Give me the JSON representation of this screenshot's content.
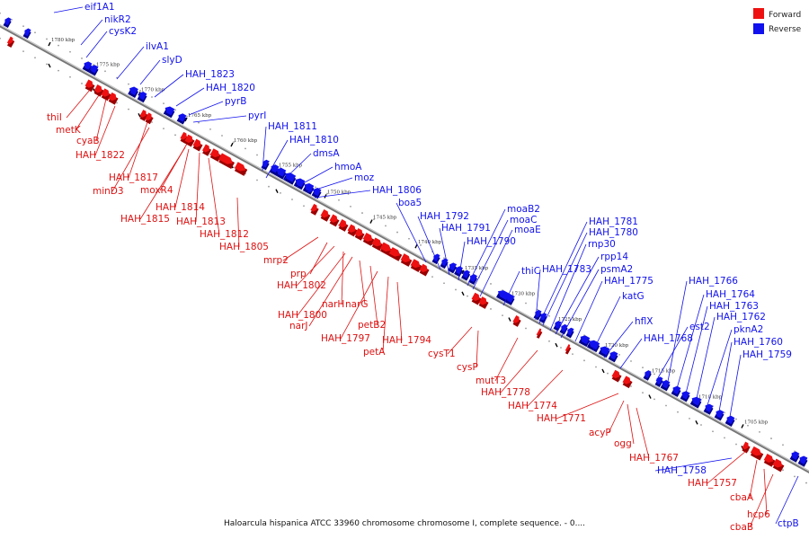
{
  "caption": "Haloarcula hispanica ATCC 33960 chromosome chromosome I, complete sequence. - 0....",
  "legend": [
    {
      "label": "Forward",
      "color": "#ee1111"
    },
    {
      "label": "Reverse",
      "color": "#1111ee"
    }
  ],
  "colors": {
    "forward": "#ee1111",
    "forward_dark": "#9a0000",
    "reverse": "#1111ee",
    "reverse_dark": "#00008a",
    "backbone": "#777777"
  },
  "kbp_ticks": [
    "1780 kbp",
    "1775 kbp",
    "1770 kbp",
    "1765 kbp",
    "1760 kbp",
    "1755 kbp",
    "1750 kbp",
    "1745 kbp",
    "1740 kbp",
    "1735 kbp",
    "1730 kbp",
    "1725 kbp",
    "1720 kbp",
    "1715 kbp",
    "1710 kbp",
    "1705 kbp"
  ],
  "reverse_labels": [
    "eif1A1",
    "nikR2",
    "cysK2",
    "ilvA1",
    "slyD",
    "HAH_1823",
    "HAH_1820",
    "pyrB",
    "pyrI",
    "HAH_1811",
    "HAH_1810",
    "dmsA",
    "hmoA",
    "moz",
    "HAH_1806",
    "boa5",
    "HAH_1792",
    "HAH_1791",
    "HAH_1790",
    "moaB2",
    "moaC",
    "moaE",
    "thiC",
    "HAH_1783",
    "HAH_1781",
    "HAH_1780",
    "rnp30",
    "rpp14",
    "psmA2",
    "HAH_1775",
    "katG",
    "hflX",
    "HAH_1768",
    "est2",
    "HAH_1766",
    "HAH_1764",
    "HAH_1763",
    "HAH_1762",
    "pknA2",
    "HAH_1760",
    "HAH_1759",
    "HAH_1758",
    "ctpB"
  ],
  "forward_labels": [
    "thiI",
    "metK",
    "cyaB",
    "HAH_1822",
    "HAH_1817",
    "minD3",
    "moxR4",
    "HAH_1815",
    "HAH_1814",
    "HAH_1813",
    "HAH_1812",
    "HAH_1805",
    "mrp2",
    "prp",
    "HAH_1802",
    "narH",
    "HAH_1800",
    "narJ",
    "narG",
    "petB2",
    "HAH_1797",
    "petA",
    "HAH_1794",
    "cysT1",
    "cysP",
    "mutT3",
    "HAH_1778",
    "HAH_1774",
    "HAH_1771",
    "acyP",
    "ogg",
    "HAH_1767",
    "HAH_1757",
    "cbaA",
    "hcp6",
    "cbaB"
  ]
}
